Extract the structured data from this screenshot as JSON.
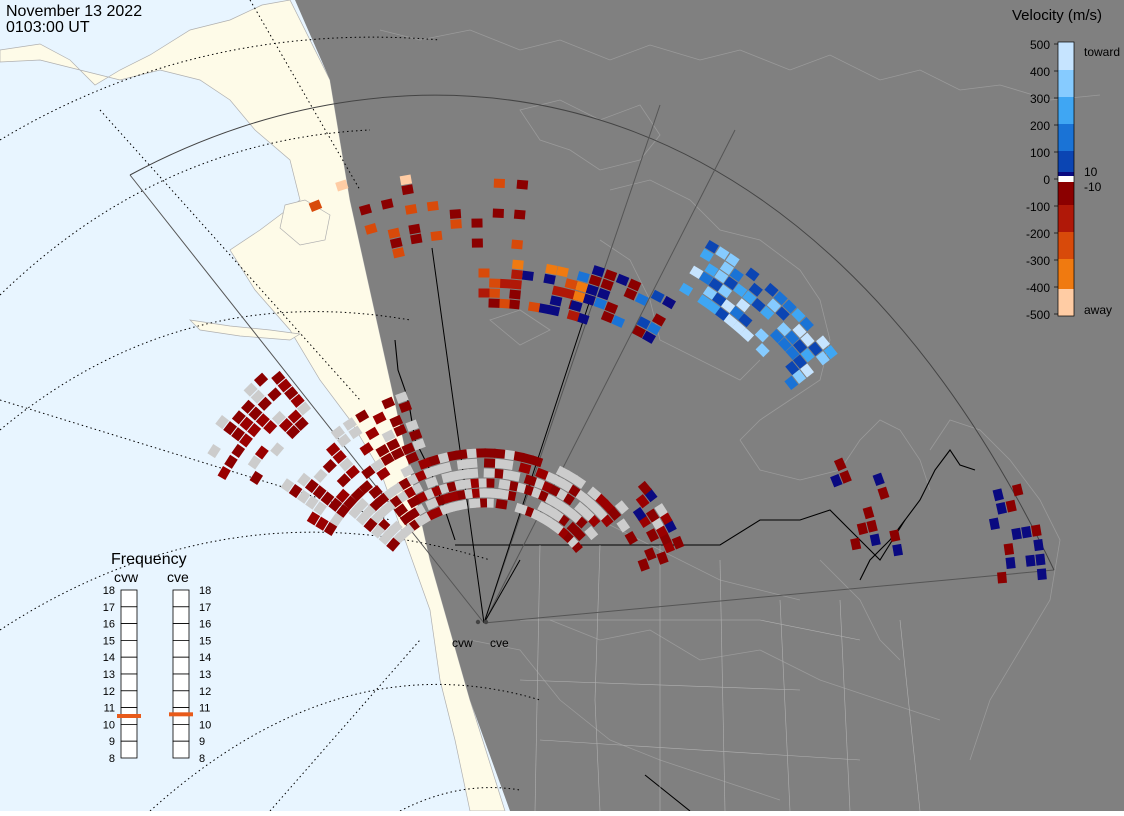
{
  "header": {
    "date": "November 13 2022",
    "time": "0103:00 UT"
  },
  "velocity_scale": {
    "title": "Velocity (m/s)",
    "ticks": [
      "500",
      "400",
      "300",
      "200",
      "100",
      "0",
      "-100",
      "-200",
      "-300",
      "-400",
      "-500"
    ],
    "pos_label": "10",
    "neg_label": "-10",
    "toward_label": "toward",
    "away_label": "away",
    "colors": [
      "#c6e4ff",
      "#86cbff",
      "#3fa6f3",
      "#1a73d6",
      "#0b45b3",
      "#0a0a80",
      "#ffffff",
      "#8b0000",
      "#b01808",
      "#d84a0a",
      "#f07a10",
      "#ffcca4"
    ]
  },
  "frequency": {
    "title": "Frequency",
    "radars": [
      {
        "name": "cvw",
        "value_mhz": 10.5
      },
      {
        "name": "cve",
        "value_mhz": 10.6
      }
    ],
    "ticks": [
      "18",
      "17",
      "16",
      "15",
      "14",
      "13",
      "12",
      "11",
      "10",
      "9",
      "8"
    ]
  },
  "map": {
    "radar_labels": [
      "cvw",
      "cve"
    ],
    "colors": {
      "ocean": "#e8f5ff",
      "land": "#fefbe8",
      "night": "#808080",
      "ground_scatter": "#cccccc",
      "border": "#000000",
      "coast": "#9a9a9a"
    }
  }
}
